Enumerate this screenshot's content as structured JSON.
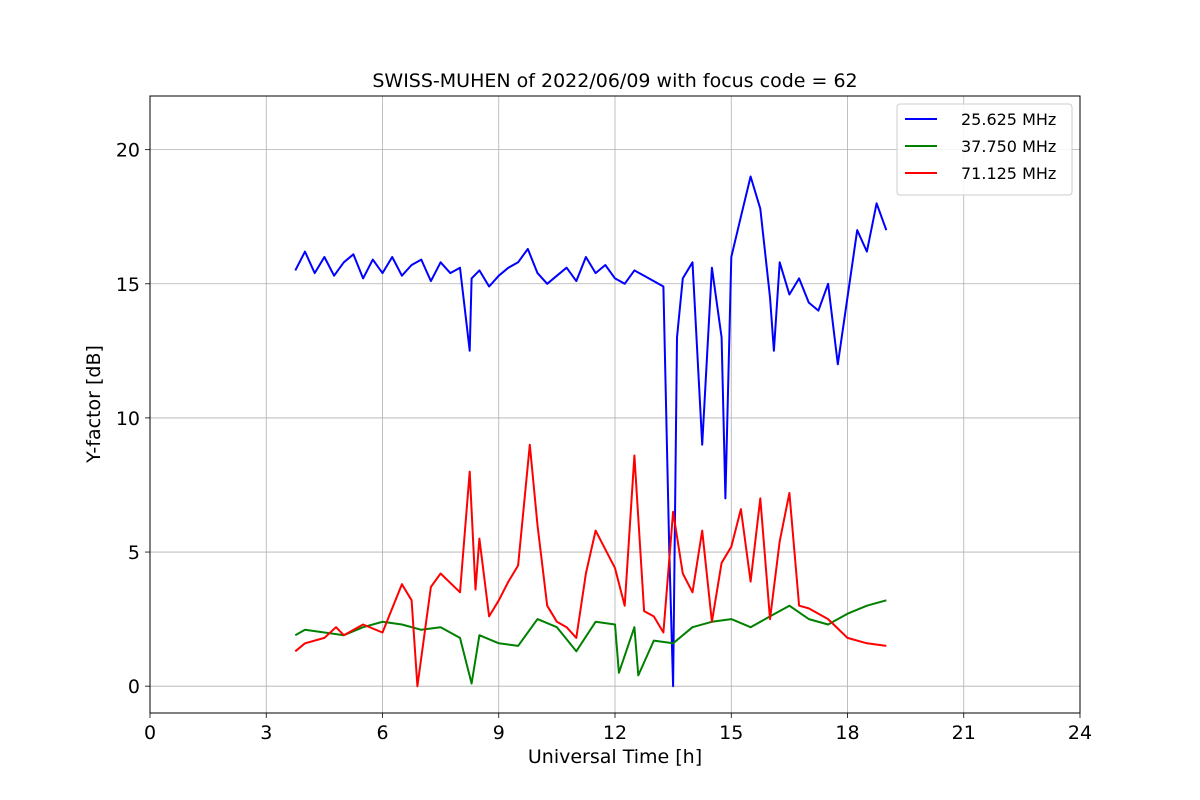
{
  "chart_data": {
    "type": "line",
    "title": "SWISS-MUHEN of 2022/06/09 with focus code = 62",
    "xlabel": "Universal Time [h]",
    "ylabel": "Y-factor [dB]",
    "xlim": [
      0,
      24
    ],
    "ylim": [
      -1.0,
      22.0
    ],
    "xticks": [
      0,
      3,
      6,
      9,
      12,
      15,
      18,
      21,
      24
    ],
    "yticks": [
      0,
      5,
      10,
      15,
      20
    ],
    "grid": true,
    "legend_position": "top-right",
    "series": [
      {
        "name": "25.625 MHz",
        "color": "#0000ff",
        "x": [
          3.75,
          4.0,
          4.25,
          4.5,
          4.75,
          5.0,
          5.25,
          5.5,
          5.75,
          6.0,
          6.25,
          6.5,
          6.75,
          7.0,
          7.25,
          7.5,
          7.75,
          8.0,
          8.25,
          8.3,
          8.5,
          8.75,
          9.0,
          9.25,
          9.5,
          9.75,
          10.0,
          10.25,
          10.5,
          10.75,
          11.0,
          11.25,
          11.5,
          11.75,
          12.0,
          12.25,
          12.5,
          12.75,
          13.0,
          13.25,
          13.4,
          13.5,
          13.6,
          13.75,
          14.0,
          14.25,
          14.5,
          14.75,
          14.85,
          15.0,
          15.25,
          15.5,
          15.75,
          16.0,
          16.1,
          16.25,
          16.5,
          16.75,
          17.0,
          17.25,
          17.5,
          17.75,
          18.0,
          18.25,
          18.5,
          18.75,
          19.0
        ],
        "y": [
          15.5,
          16.2,
          15.4,
          16.0,
          15.3,
          15.8,
          16.1,
          15.2,
          15.9,
          15.4,
          16.0,
          15.3,
          15.7,
          15.9,
          15.1,
          15.8,
          15.4,
          15.6,
          12.5,
          15.2,
          15.5,
          14.9,
          15.3,
          15.6,
          15.8,
          16.3,
          15.4,
          15.0,
          15.3,
          15.6,
          15.1,
          16.0,
          15.4,
          15.7,
          15.2,
          15.0,
          15.5,
          15.3,
          15.1,
          14.9,
          5.0,
          0.0,
          13.0,
          15.2,
          15.8,
          9.0,
          15.6,
          13.0,
          7.0,
          16.0,
          17.5,
          19.0,
          17.8,
          14.5,
          12.5,
          15.8,
          14.6,
          15.2,
          14.3,
          14.0,
          15.0,
          12.0,
          14.5,
          17.0,
          16.2,
          18.0,
          17.0
        ]
      },
      {
        "name": "37.750 MHz",
        "color": "#008000",
        "x": [
          3.75,
          4.0,
          4.5,
          5.0,
          5.5,
          6.0,
          6.5,
          7.0,
          7.5,
          8.0,
          8.3,
          8.5,
          9.0,
          9.5,
          10.0,
          10.5,
          11.0,
          11.5,
          12.0,
          12.1,
          12.5,
          12.6,
          13.0,
          13.5,
          14.0,
          14.5,
          15.0,
          15.5,
          16.0,
          16.5,
          17.0,
          17.5,
          18.0,
          18.5,
          19.0
        ],
        "y": [
          1.9,
          2.1,
          2.0,
          1.9,
          2.2,
          2.4,
          2.3,
          2.1,
          2.2,
          1.8,
          0.1,
          1.9,
          1.6,
          1.5,
          2.5,
          2.2,
          1.3,
          2.4,
          2.3,
          0.5,
          2.2,
          0.4,
          1.7,
          1.6,
          2.2,
          2.4,
          2.5,
          2.2,
          2.6,
          3.0,
          2.5,
          2.3,
          2.7,
          3.0,
          3.2
        ]
      },
      {
        "name": "71.125 MHz",
        "color": "#ff0000",
        "x": [
          3.75,
          4.0,
          4.5,
          4.8,
          5.0,
          5.5,
          6.0,
          6.5,
          6.75,
          6.9,
          7.25,
          7.5,
          8.0,
          8.25,
          8.4,
          8.5,
          8.75,
          9.0,
          9.25,
          9.5,
          9.8,
          10.0,
          10.25,
          10.5,
          10.75,
          11.0,
          11.25,
          11.5,
          12.0,
          12.25,
          12.5,
          12.75,
          13.0,
          13.25,
          13.5,
          13.75,
          14.0,
          14.25,
          14.5,
          14.75,
          15.0,
          15.25,
          15.5,
          15.75,
          16.0,
          16.25,
          16.5,
          16.75,
          17.0,
          17.5,
          18.0,
          18.5,
          19.0
        ],
        "y": [
          1.3,
          1.6,
          1.8,
          2.2,
          1.9,
          2.3,
          2.0,
          3.8,
          3.2,
          0.0,
          3.7,
          4.2,
          3.5,
          8.0,
          3.6,
          5.5,
          2.6,
          3.2,
          3.9,
          4.5,
          9.0,
          6.0,
          3.0,
          2.4,
          2.2,
          1.8,
          4.2,
          5.8,
          4.4,
          3.0,
          8.6,
          2.8,
          2.6,
          2.0,
          6.5,
          4.2,
          3.5,
          5.8,
          2.4,
          4.6,
          5.2,
          6.6,
          3.9,
          7.0,
          2.5,
          5.4,
          7.2,
          3.0,
          2.9,
          2.5,
          1.8,
          1.6,
          1.5
        ]
      }
    ]
  }
}
